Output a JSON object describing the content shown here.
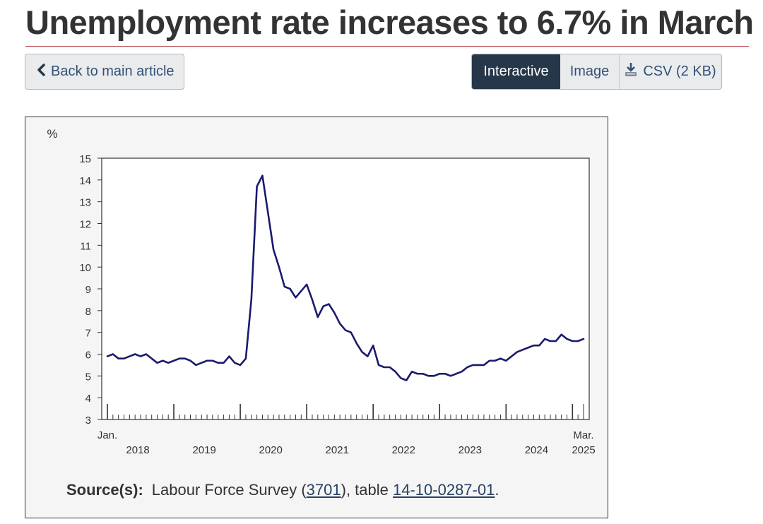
{
  "page": {
    "title": "Unemployment rate increases to 6.7% in March",
    "back_label": "Back to main article",
    "view_tabs": [
      {
        "label": "Interactive",
        "active": true
      },
      {
        "label": "Image",
        "active": false
      },
      {
        "label": "CSV (2 KB)",
        "active": false,
        "icon": "download-icon"
      }
    ],
    "accent_color": "#af3c43",
    "active_tab_color": "#26374a"
  },
  "source": {
    "label": "Source(s):",
    "text_before": "Labour Force Survey (",
    "survey_link": "3701",
    "text_middle": "), table ",
    "table_link": "14-10-0287-01",
    "text_after": "."
  },
  "chart_data": {
    "type": "line",
    "title": "",
    "ylabel": "%",
    "xlabel": "",
    "ylim": [
      3,
      15
    ],
    "yticks": [
      3,
      4,
      5,
      6,
      7,
      8,
      9,
      10,
      11,
      12,
      13,
      14,
      15
    ],
    "start": "2018-01",
    "end": "2025-03",
    "x_first_label": "Jan.",
    "x_last_label": "Mar.",
    "year_labels": [
      "2018",
      "2019",
      "2020",
      "2021",
      "2022",
      "2023",
      "2024",
      "2025"
    ],
    "line_color": "#1a1a6e",
    "grid": false,
    "legend": "none",
    "series": [
      {
        "values": [
          5.9,
          6.0,
          5.8,
          5.8,
          5.9,
          6.0,
          5.9,
          6.0,
          5.8,
          5.6,
          5.7,
          5.6,
          5.7,
          5.8,
          5.8,
          5.7,
          5.5,
          5.6,
          5.7,
          5.7,
          5.6,
          5.6,
          5.9,
          5.6,
          5.5,
          5.8,
          8.5,
          13.7,
          14.2,
          12.5,
          10.8,
          10.0,
          9.1,
          9.0,
          8.6,
          8.9,
          9.2,
          8.5,
          7.7,
          8.2,
          8.3,
          7.9,
          7.4,
          7.1,
          7.0,
          6.5,
          6.1,
          5.9,
          6.4,
          5.5,
          5.4,
          5.4,
          5.2,
          4.9,
          4.8,
          5.2,
          5.1,
          5.1,
          5.0,
          5.0,
          5.1,
          5.1,
          5.0,
          5.1,
          5.2,
          5.4,
          5.5,
          5.5,
          5.5,
          5.7,
          5.7,
          5.8,
          5.7,
          5.9,
          6.1,
          6.2,
          6.3,
          6.4,
          6.4,
          6.7,
          6.6,
          6.6,
          6.9,
          6.7,
          6.6,
          6.6,
          6.7
        ]
      }
    ]
  }
}
